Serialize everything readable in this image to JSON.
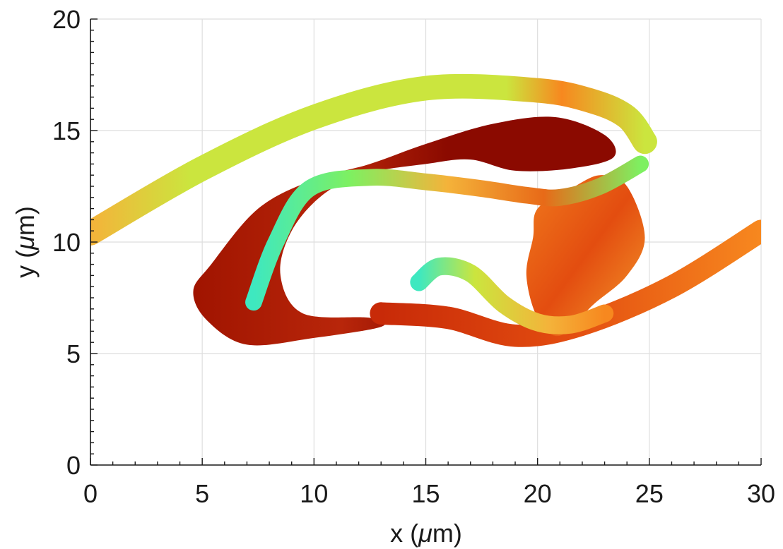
{
  "chart_data": {
    "type": "surface",
    "xlabel_pre": "x (",
    "xlabel_mu": "μ",
    "xlabel_post": "m)",
    "ylabel_pre": "y (",
    "ylabel_mu": "μ",
    "ylabel_post": "m)",
    "xlim": [
      0,
      30
    ],
    "ylim": [
      0,
      20
    ],
    "xticks": [
      0,
      5,
      10,
      15,
      20,
      25,
      30
    ],
    "yticks": [
      0,
      5,
      10,
      15,
      20
    ],
    "x_tick_labels": [
      "0",
      "5",
      "10",
      "15",
      "20",
      "25",
      "30"
    ],
    "y_tick_labels": [
      "0",
      "5",
      "10",
      "15",
      "20"
    ],
    "x_minor_step": 1,
    "y_minor_step": 0.5,
    "grid": true,
    "colormap": "turbo",
    "colors": {
      "dark_red": "#8b0a00",
      "red": "#c82a08",
      "orange_red": "#e34d10",
      "orange": "#f7881f",
      "yellow_orange": "#f4b33a",
      "yellow_green": "#cbe53e",
      "green": "#7ef061",
      "cyan": "#3ee8c0",
      "blue": "#4a90f0"
    },
    "structures": [
      {
        "name": "outer-arc-band",
        "color": "yellow_green",
        "centerline": [
          [
            0,
            10.4
          ],
          [
            5,
            13.3
          ],
          [
            10,
            15.6
          ],
          [
            15,
            16.9
          ],
          [
            20,
            16.8
          ],
          [
            22.5,
            16.3
          ],
          [
            24,
            15.6
          ],
          [
            24.8,
            14.5
          ]
        ],
        "thickness": 1.1
      },
      {
        "name": "dark-red-loop",
        "color": "dark_red",
        "outline": [
          [
            5.4,
            9
          ],
          [
            7.5,
            11.5
          ],
          [
            10,
            12.8
          ],
          [
            12.5,
            13.5
          ],
          [
            15,
            14.4
          ],
          [
            18,
            15.3
          ],
          [
            20.8,
            15.6
          ],
          [
            23,
            14.8
          ],
          [
            23.4,
            13.8
          ],
          [
            21.5,
            13.3
          ],
          [
            19,
            13.2
          ],
          [
            17,
            13.7
          ],
          [
            15,
            13.5
          ],
          [
            12.5,
            13.1
          ],
          [
            10.5,
            12.2
          ],
          [
            9,
            10.5
          ],
          [
            8.5,
            8.5
          ],
          [
            9.5,
            6.8
          ],
          [
            12.5,
            6.6
          ],
          [
            13,
            6.2
          ],
          [
            10,
            5.7
          ],
          [
            7,
            5.4
          ],
          [
            5.2,
            6.5
          ],
          [
            4.6,
            7.8
          ]
        ]
      },
      {
        "name": "lower-right-arc-band",
        "color": "orange",
        "centerline": [
          [
            13,
            6.8
          ],
          [
            16,
            6.6
          ],
          [
            19,
            5.8
          ],
          [
            22,
            6.3
          ],
          [
            26,
            8
          ],
          [
            30,
            10.5
          ]
        ],
        "thickness": 1.0
      },
      {
        "name": "right-lobe",
        "color": "orange_red",
        "outline": [
          [
            20,
            11.5
          ],
          [
            21.5,
            12.4
          ],
          [
            22.8,
            13
          ],
          [
            24,
            12.5
          ],
          [
            24.8,
            10.2
          ],
          [
            24,
            8.5
          ],
          [
            22.5,
            7.2
          ],
          [
            21,
            5.8
          ],
          [
            20,
            6.6
          ],
          [
            19.5,
            8.5
          ],
          [
            19.8,
            10.2
          ]
        ]
      },
      {
        "name": "inner-green-loop",
        "color": "green",
        "centerline": [
          [
            7.3,
            7.3
          ],
          [
            8.3,
            10
          ],
          [
            9.8,
            12.4
          ],
          [
            12.5,
            12.9
          ],
          [
            15,
            12.7
          ],
          [
            17.5,
            12.4
          ],
          [
            19.5,
            12.1
          ],
          [
            21,
            12
          ],
          [
            22.8,
            12.5
          ],
          [
            24.6,
            13.5
          ]
        ],
        "thickness": 0.75
      },
      {
        "name": "inner-lower-green-arm",
        "color": "green",
        "centerline": [
          [
            14.7,
            8.2
          ],
          [
            15.6,
            8.9
          ],
          [
            17,
            8.6
          ],
          [
            18.5,
            7.2
          ],
          [
            20,
            6.4
          ],
          [
            21.5,
            6.3
          ],
          [
            23,
            6.8
          ]
        ],
        "thickness": 0.8
      }
    ]
  }
}
